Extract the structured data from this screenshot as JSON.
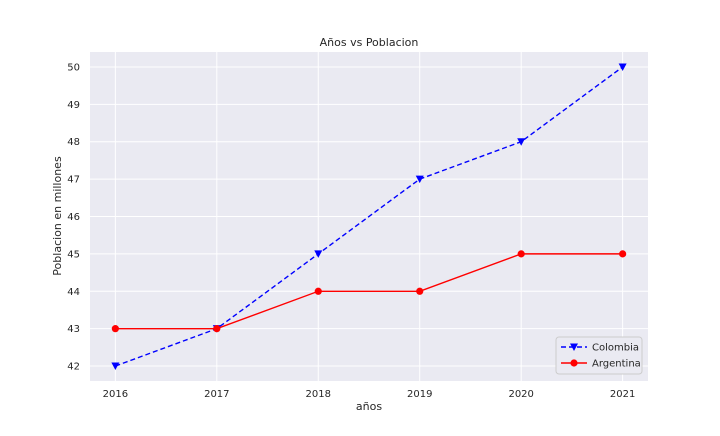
{
  "chart_data": {
    "type": "line",
    "title": "Años vs Poblacion",
    "xlabel": "años",
    "ylabel": "Poblacion en millones",
    "x": [
      2016,
      2017,
      2018,
      2019,
      2020,
      2021
    ],
    "xlim": [
      2015.75,
      2021.25
    ],
    "ylim": [
      41.6,
      50.4
    ],
    "yticks": [
      42,
      43,
      44,
      45,
      46,
      47,
      48,
      49,
      50
    ],
    "grid": true,
    "legend_position": "lower-right",
    "series": [
      {
        "name": "Colombia",
        "values": [
          42,
          43,
          45,
          47,
          48,
          50
        ],
        "color": "#0000ff",
        "linestyle": "dashed",
        "marker": "triangle-down"
      },
      {
        "name": "Argentina",
        "values": [
          43,
          43,
          44,
          44,
          45,
          45
        ],
        "color": "#ff0000",
        "linestyle": "solid",
        "marker": "circle"
      }
    ]
  }
}
